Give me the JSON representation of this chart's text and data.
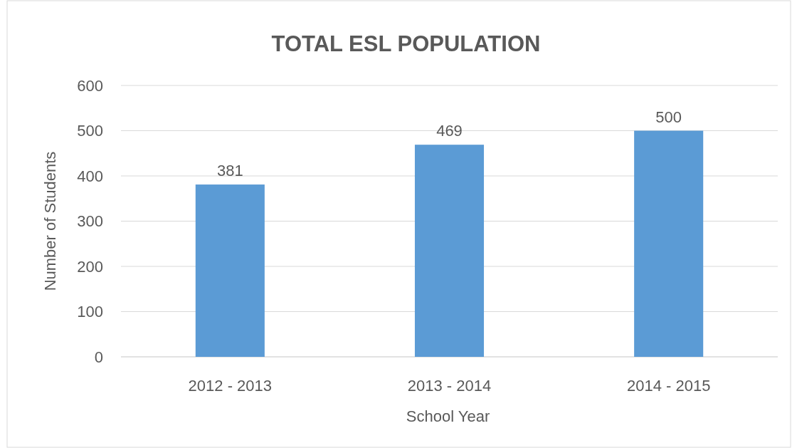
{
  "chart_data": {
    "type": "bar",
    "title": "TOTAL ESL POPULATION",
    "xlabel": "School Year",
    "ylabel": "Number of Students",
    "categories": [
      "2012 - 2013",
      "2013 - 2014",
      "2014 - 2015"
    ],
    "values": [
      381,
      469,
      500
    ],
    "color": "#5b9bd5",
    "ylim": [
      0,
      600
    ],
    "yticks": [
      0,
      100,
      200,
      300,
      400,
      500,
      600
    ],
    "grid": "y",
    "data_labels": true
  }
}
